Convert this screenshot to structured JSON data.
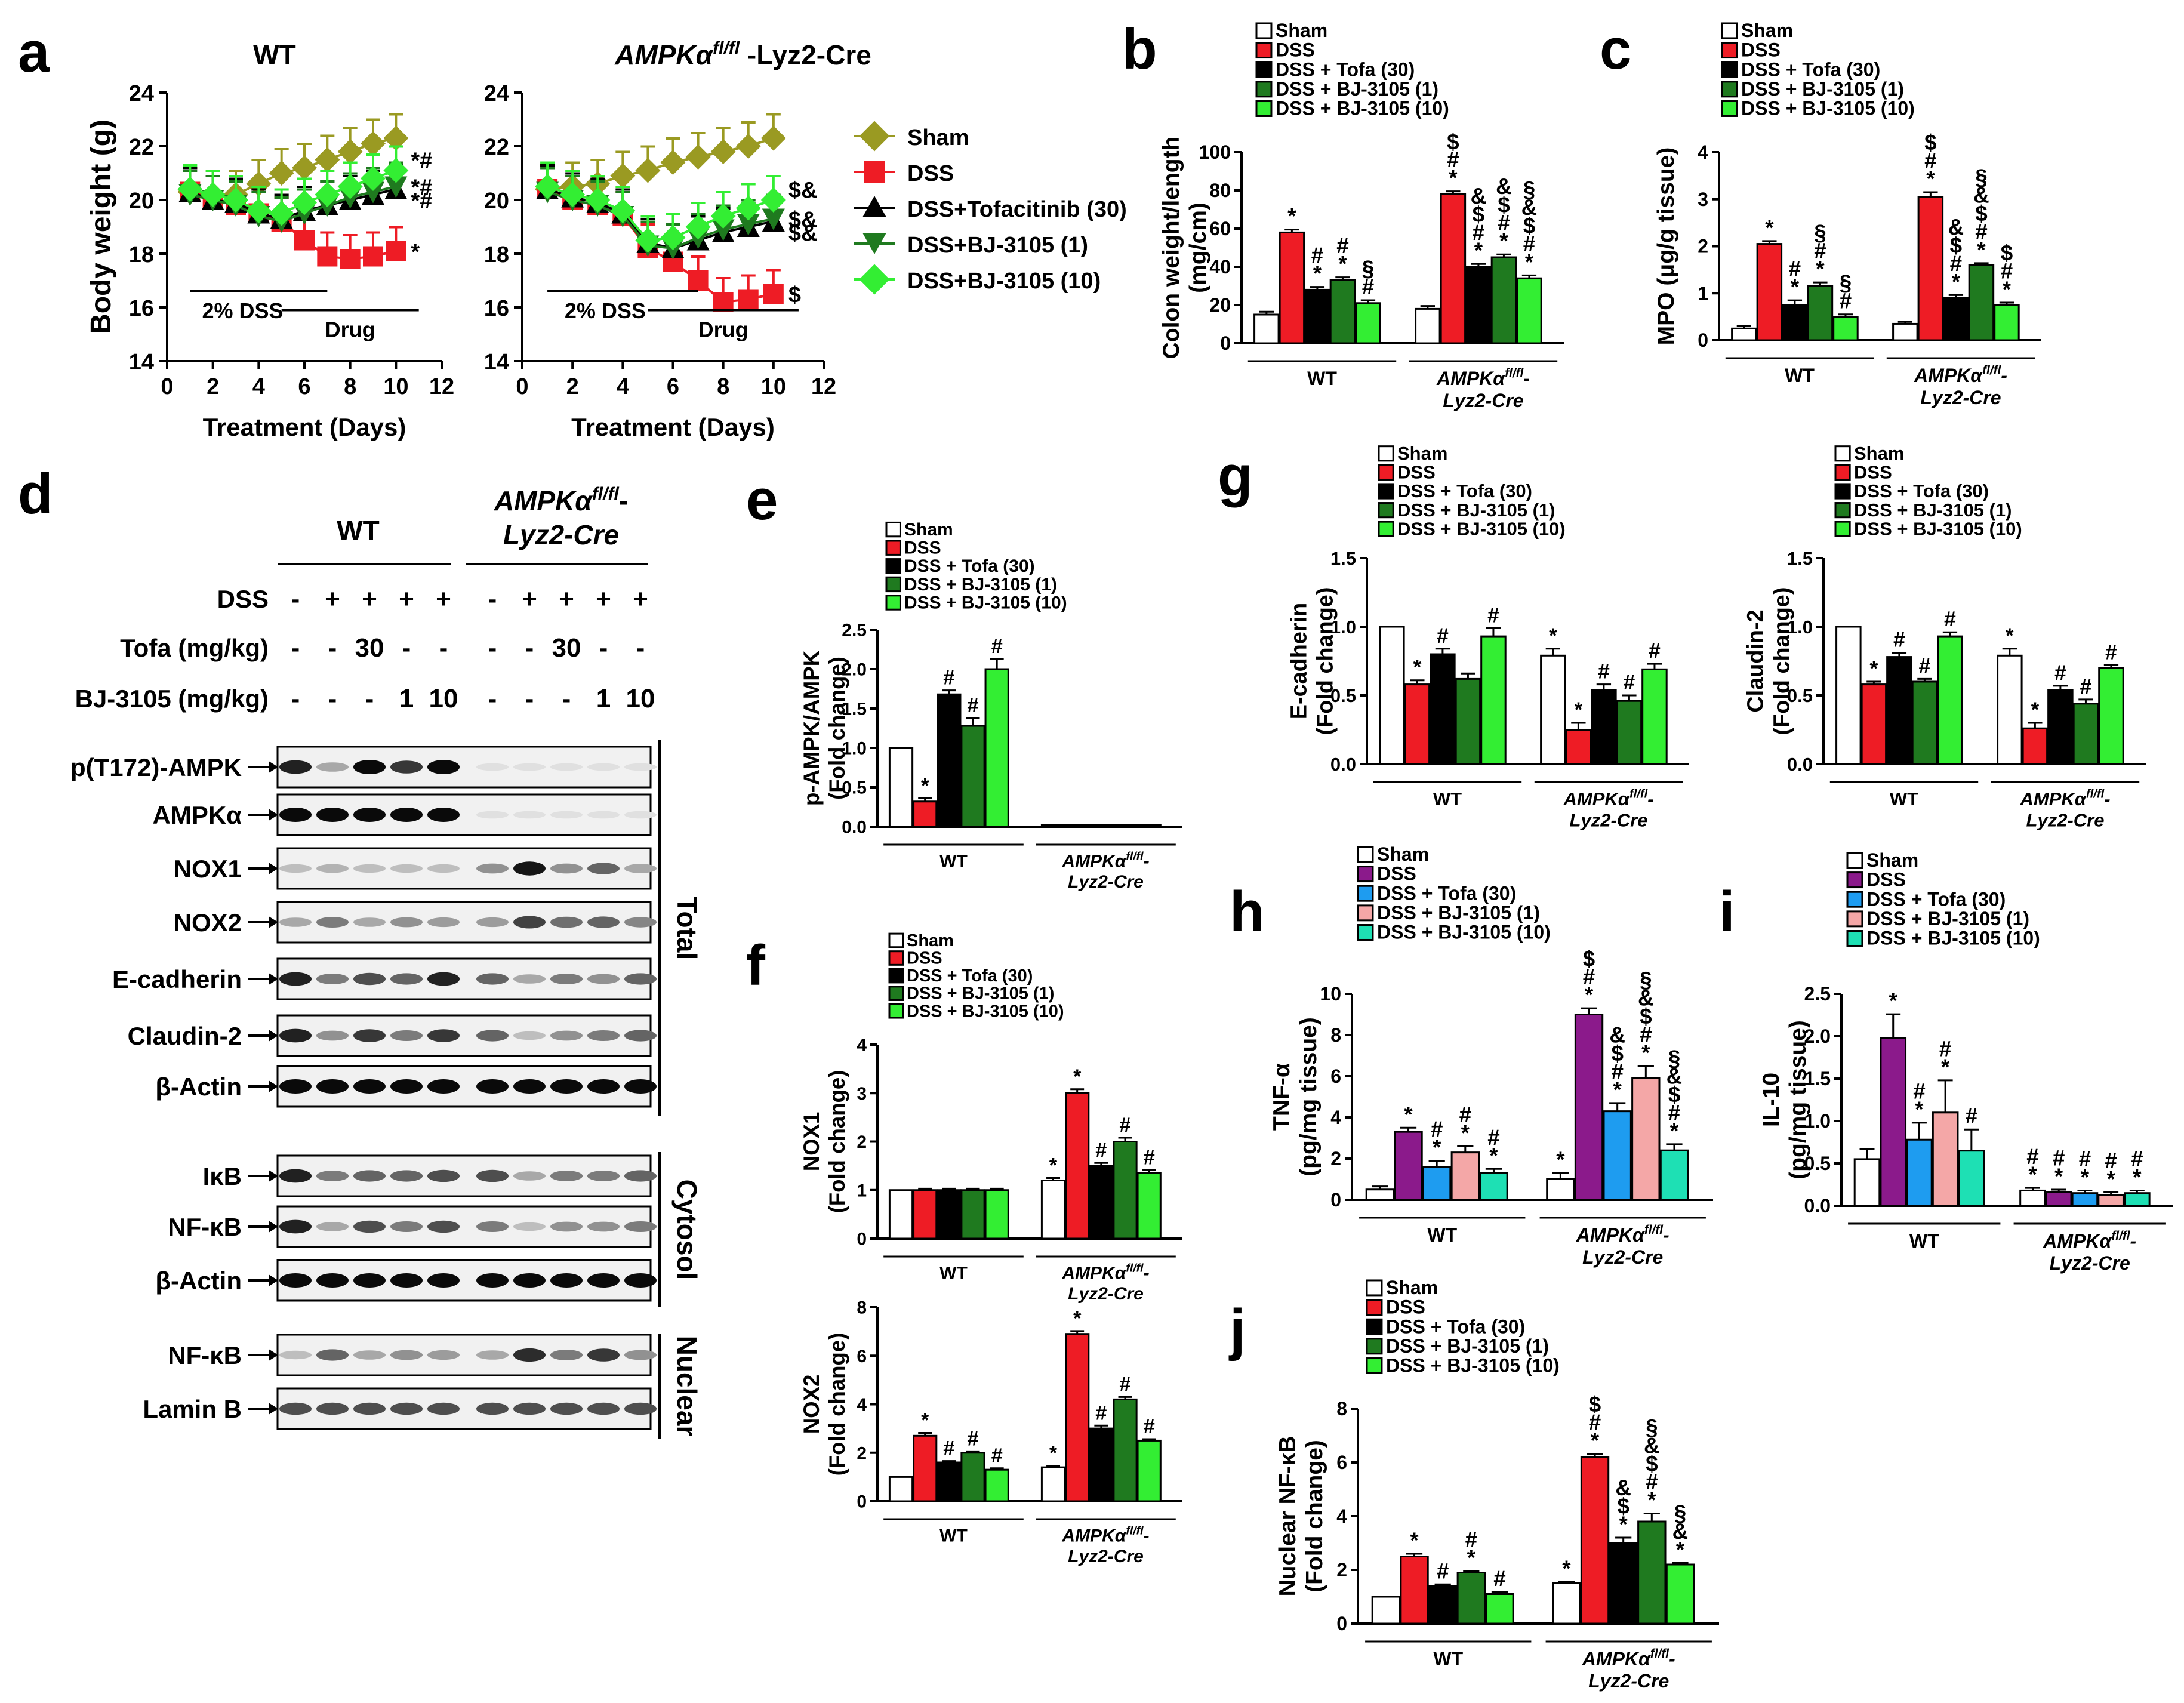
{
  "figure": {
    "panel_labels": [
      "a",
      "b",
      "c",
      "d",
      "e",
      "f",
      "g",
      "h",
      "i",
      "j"
    ]
  },
  "groups_a": {
    "wt": "WT",
    "ko": "AMPKα",
    "ko_sup": "fl/fl",
    "ko_tail": " -Lyz2-Cre"
  },
  "legend_a": [
    "Sham",
    "DSS",
    "DSS+Tofacitinib (30)",
    "DSS+BJ-3105 (1)",
    "DSS+BJ-3105 (10)"
  ],
  "legend_bar": [
    "Sham",
    "DSS",
    "DSS + Tofa (30)",
    "DSS + BJ-3105 (1)",
    "DSS + BJ-3105 (10)"
  ],
  "group_labels": {
    "wt": "WT",
    "ko_line1": "AMPKα",
    "ko_sup": "fl/fl",
    "ko_dash": "-",
    "ko_line2": "Lyz2-Cre"
  },
  "colors": {
    "set1": [
      "#ffffff",
      "#ee1c25",
      "#000000",
      "#1f7a1f",
      "#33ee33"
    ],
    "set2": [
      "#ffffff",
      "#8b1a8b",
      "#1e9cf0",
      "#f4a7a7",
      "#1ee0b4"
    ],
    "line": [
      "#9a9a22",
      "#ee1c25",
      "#000000",
      "#1f7a1f",
      "#33ee33"
    ]
  },
  "blot": {
    "header_wt": "WT",
    "header_ko": "AMPKα",
    "header_ko_sup": "fl/fl",
    "header_ko_tail": "-",
    "header_ko2": "Lyz2-Cre",
    "row_dss_label": "DSS",
    "row_dss": [
      "-",
      "+",
      "+",
      "+",
      "+",
      "-",
      "+",
      "+",
      "+",
      "+"
    ],
    "row_tofa_label": "Tofa (mg/kg)",
    "row_tofa": [
      "-",
      "-",
      "30",
      "-",
      "-",
      "-",
      "-",
      "30",
      "-",
      "-"
    ],
    "row_bj_label": "BJ-3105 (mg/kg)",
    "row_bj": [
      "-",
      "-",
      "-",
      "1",
      "10",
      "-",
      "-",
      "-",
      "1",
      "10"
    ],
    "bands": [
      "p(T172)-AMPK",
      "AMPKα",
      "NOX1",
      "NOX2",
      "E-cadherin",
      "Claudin-2",
      "β-Actin",
      "IκB",
      "NF-κB",
      "β-Actin",
      "NF-κB",
      "Lamin B"
    ],
    "section_total": "Total",
    "section_cytosol": "Cytosol",
    "section_nuclear": "Nuclear"
  },
  "chart_data": [
    {
      "id": "a_wt",
      "type": "line",
      "title": "WT",
      "xlabel": "Treatment (Days)",
      "ylabel": "Body weight (g)",
      "xlim": [
        0,
        12
      ],
      "ylim": [
        14,
        24
      ],
      "xticks": [
        "0",
        "2",
        "4",
        "6",
        "8",
        "10",
        "12"
      ],
      "yticks": [
        "14",
        "16",
        "18",
        "20",
        "22",
        "24"
      ],
      "x": [
        1,
        2,
        3,
        4,
        5,
        6,
        7,
        8,
        9,
        10
      ],
      "series": [
        {
          "name": "Sham",
          "values": [
            20.3,
            20.2,
            20.2,
            20.6,
            21.0,
            21.2,
            21.5,
            21.8,
            22.1,
            22.3
          ]
        },
        {
          "name": "DSS",
          "values": [
            20.3,
            20.0,
            19.8,
            19.5,
            19.2,
            18.5,
            17.9,
            17.8,
            17.9,
            18.1
          ]
        },
        {
          "name": "DSS+Tofacitinib (30)",
          "values": [
            20.3,
            20.0,
            19.9,
            19.5,
            19.3,
            19.6,
            19.8,
            20.0,
            20.2,
            20.4
          ]
        },
        {
          "name": "DSS+BJ-3105 (1)",
          "values": [
            20.2,
            20.0,
            19.8,
            19.4,
            19.2,
            19.5,
            19.8,
            20.1,
            20.3,
            20.5
          ]
        },
        {
          "name": "DSS+BJ-3105 (10)",
          "values": [
            20.4,
            20.2,
            20.0,
            19.6,
            19.5,
            19.9,
            20.2,
            20.5,
            20.8,
            21.1
          ]
        }
      ],
      "annotations": {
        "dss_bar": "2% DSS",
        "drug_bar": "Drug",
        "marks": [
          "*#",
          "*#",
          "*#",
          "*"
        ]
      }
    },
    {
      "id": "a_ko",
      "type": "line",
      "xlabel": "Treatment (Days)",
      "xlim": [
        0,
        12
      ],
      "ylim": [
        14,
        24
      ],
      "xticks": [
        "0",
        "2",
        "4",
        "6",
        "8",
        "10",
        "12"
      ],
      "yticks": [
        "14",
        "16",
        "18",
        "20",
        "22",
        "24"
      ],
      "x": [
        1,
        2,
        3,
        4,
        5,
        6,
        7,
        8,
        9,
        10
      ],
      "series": [
        {
          "name": "Sham",
          "values": [
            20.4,
            20.5,
            20.6,
            20.9,
            21.1,
            21.4,
            21.6,
            21.8,
            22.0,
            22.3
          ]
        },
        {
          "name": "DSS",
          "values": [
            20.4,
            20.0,
            19.8,
            19.4,
            18.2,
            17.7,
            17.0,
            16.2,
            16.3,
            16.5
          ]
        },
        {
          "name": "DSS+Tofacitinib (30)",
          "values": [
            20.4,
            20.1,
            19.9,
            19.5,
            18.4,
            18.2,
            18.5,
            18.8,
            19.0,
            19.2
          ]
        },
        {
          "name": "DSS+BJ-3105 (1)",
          "values": [
            20.3,
            20.0,
            19.8,
            19.4,
            18.3,
            18.2,
            18.6,
            18.9,
            19.1,
            19.3
          ]
        },
        {
          "name": "DSS+BJ-3105 (10)",
          "values": [
            20.5,
            20.2,
            20.0,
            19.6,
            18.5,
            18.6,
            19.0,
            19.4,
            19.7,
            20.0
          ]
        }
      ],
      "annotations": {
        "dss_bar": "2% DSS",
        "drug_bar": "Drug",
        "marks": [
          "$&",
          "$&",
          "$&",
          "$"
        ]
      }
    },
    {
      "id": "b",
      "type": "bar",
      "ylabel_line1": "Colon weight/length",
      "ylabel_line2": "(mg/cm)",
      "ylim": [
        0,
        100
      ],
      "yticks": [
        "0",
        "20",
        "40",
        "60",
        "80",
        "100"
      ],
      "palette": "set1",
      "groups": [
        {
          "name": "WT",
          "values": [
            15,
            58,
            28,
            33,
            21
          ],
          "errors": [
            1.5,
            1.5,
            1.5,
            1.5,
            1.5
          ],
          "marks": [
            "",
            "*",
            "#\n*",
            "#\n*",
            "§\n#"
          ]
        },
        {
          "name": "KO",
          "values": [
            18,
            78,
            40,
            45,
            34
          ],
          "errors": [
            1.5,
            1.5,
            1.5,
            1.5,
            1.5
          ],
          "marks": [
            "",
            "$\n#\n*",
            "&\n$\n#\n*",
            "&\n$\n#\n*",
            "§\n&\n$\n#\n*"
          ]
        }
      ]
    },
    {
      "id": "c",
      "type": "bar",
      "ylabel_line1": "MPO (μg/g tissue)",
      "ylim": [
        0,
        4
      ],
      "yticks": [
        "0",
        "1",
        "2",
        "3",
        "4"
      ],
      "palette": "set1",
      "groups": [
        {
          "name": "WT",
          "values": [
            0.25,
            2.05,
            0.75,
            1.15,
            0.5
          ],
          "errors": [
            0.06,
            0.06,
            0.1,
            0.08,
            0.05
          ],
          "marks": [
            "",
            "*",
            "#\n*",
            "§\n#\n*",
            "§\n#"
          ]
        },
        {
          "name": "KO",
          "values": [
            0.35,
            3.05,
            0.9,
            1.6,
            0.75
          ],
          "errors": [
            0.04,
            0.1,
            0.06,
            0.04,
            0.05
          ],
          "marks": [
            "",
            "$\n#\n*",
            "&\n$\n#\n*",
            "§\n&\n$\n#\n*",
            "$\n#\n*"
          ]
        }
      ]
    },
    {
      "id": "e",
      "type": "bar",
      "ylabel_line1": "p-AMPK/AMPK",
      "ylabel_line2": "(Fold change)",
      "ylim": [
        0,
        2.5
      ],
      "yticks": [
        "0.0",
        "0.5",
        "1.0",
        "1.5",
        "2.0",
        "2.5"
      ],
      "palette": "set1",
      "groups": [
        {
          "name": "WT",
          "values": [
            1.0,
            0.32,
            1.68,
            1.28,
            2.0
          ],
          "errors": [
            0,
            0.04,
            0.05,
            0.1,
            0.13
          ],
          "marks": [
            "",
            "*",
            "#",
            "#",
            "#"
          ]
        },
        {
          "name": "KO",
          "values": [
            0.02,
            0.02,
            0.02,
            0.02,
            0.02
          ],
          "errors": [
            0,
            0,
            0,
            0,
            0
          ],
          "marks": [
            "",
            "",
            "",
            "",
            ""
          ]
        }
      ]
    },
    {
      "id": "f1",
      "type": "bar",
      "ylabel_line1": "NOX1",
      "ylabel_line2": "(Fold change)",
      "ylim": [
        0,
        4
      ],
      "yticks": [
        "0",
        "1",
        "2",
        "3",
        "4"
      ],
      "palette": "set1",
      "groups": [
        {
          "name": "WT",
          "values": [
            1.0,
            1.0,
            1.0,
            1.0,
            1.0
          ],
          "errors": [
            0,
            0.03,
            0.03,
            0.03,
            0.03
          ],
          "marks": [
            "",
            "",
            "",
            "",
            ""
          ]
        },
        {
          "name": "KO",
          "values": [
            1.2,
            3.0,
            1.5,
            2.0,
            1.35
          ],
          "errors": [
            0.05,
            0.08,
            0.06,
            0.08,
            0.06
          ],
          "marks": [
            "*",
            "*",
            "#",
            "#",
            "#"
          ]
        }
      ]
    },
    {
      "id": "f2",
      "type": "bar",
      "ylabel_line1": "NOX2",
      "ylabel_line2": "(Fold change)",
      "ylim": [
        0,
        8
      ],
      "yticks": [
        "0",
        "2",
        "4",
        "6",
        "8"
      ],
      "palette": "set1",
      "groups": [
        {
          "name": "WT",
          "values": [
            1.0,
            2.7,
            1.6,
            2.0,
            1.3
          ],
          "errors": [
            0,
            0.12,
            0.06,
            0.06,
            0.06
          ],
          "marks": [
            "",
            "*",
            "#",
            "#",
            "#"
          ]
        },
        {
          "name": "KO",
          "values": [
            1.4,
            6.9,
            3.0,
            4.2,
            2.5
          ],
          "errors": [
            0.06,
            0.12,
            0.12,
            0.1,
            0.06
          ],
          "marks": [
            "*",
            "*",
            "#",
            "#",
            "#"
          ]
        }
      ]
    },
    {
      "id": "g1",
      "type": "bar",
      "ylabel_line1": "E-cadherin",
      "ylabel_line2": "(Fold change)",
      "ylim": [
        0,
        1.5
      ],
      "yticks": [
        "0.0",
        "0.5",
        "1.0",
        "1.5"
      ],
      "palette": "set1",
      "groups": [
        {
          "name": "WT",
          "values": [
            1.0,
            0.58,
            0.8,
            0.62,
            0.93
          ],
          "errors": [
            0,
            0.03,
            0.04,
            0.04,
            0.06
          ],
          "marks": [
            "",
            "*",
            "#",
            "",
            "#"
          ]
        },
        {
          "name": "KO",
          "values": [
            0.79,
            0.25,
            0.54,
            0.46,
            0.69
          ],
          "errors": [
            0.05,
            0.05,
            0.04,
            0.04,
            0.04
          ],
          "marks": [
            "*",
            "*",
            "#",
            "#",
            "#"
          ]
        }
      ]
    },
    {
      "id": "g2",
      "type": "bar",
      "ylabel_line1": "Claudin-2",
      "ylabel_line2": "(Fold change)",
      "ylim": [
        0,
        1.5
      ],
      "yticks": [
        "0.0",
        "0.5",
        "1.0",
        "1.5"
      ],
      "palette": "set1",
      "groups": [
        {
          "name": "WT",
          "values": [
            1.0,
            0.58,
            0.78,
            0.6,
            0.93
          ],
          "errors": [
            0,
            0.02,
            0.03,
            0.02,
            0.03
          ],
          "marks": [
            "",
            "*",
            "#",
            "#",
            "#"
          ]
        },
        {
          "name": "KO",
          "values": [
            0.79,
            0.26,
            0.54,
            0.44,
            0.7
          ],
          "errors": [
            0.05,
            0.04,
            0.03,
            0.03,
            0.02
          ],
          "marks": [
            "*",
            "*",
            "#",
            "#",
            "#"
          ]
        }
      ]
    },
    {
      "id": "h",
      "type": "bar",
      "ylabel_line1": "TNF-α",
      "ylabel_line2": "(pg/mg tissue)",
      "ylim": [
        0,
        10
      ],
      "yticks": [
        "0",
        "2",
        "4",
        "6",
        "8",
        "10"
      ],
      "palette": "set2",
      "groups": [
        {
          "name": "WT",
          "values": [
            0.5,
            3.3,
            1.6,
            2.3,
            1.3
          ],
          "errors": [
            0.15,
            0.2,
            0.3,
            0.3,
            0.2
          ],
          "marks": [
            "",
            "*",
            "#\n*",
            "#\n*",
            "#\n*"
          ]
        },
        {
          "name": "KO",
          "values": [
            1.0,
            9.0,
            4.3,
            5.9,
            2.4
          ],
          "errors": [
            0.3,
            0.3,
            0.4,
            0.6,
            0.3
          ],
          "marks": [
            "*",
            "$\n#\n*",
            "&\n$\n#\n*",
            "§\n&\n$\n#\n*",
            "§\n&\n$\n#\n*"
          ]
        }
      ]
    },
    {
      "id": "i",
      "type": "bar",
      "ylabel_line1": "IL-10",
      "ylabel_line2": "(pg/mg tissue)",
      "ylim": [
        0,
        2.5
      ],
      "yticks": [
        "0.0",
        "0.5",
        "1.0",
        "1.5",
        "2.0",
        "2.5"
      ],
      "palette": "set2",
      "groups": [
        {
          "name": "WT",
          "values": [
            0.55,
            1.98,
            0.78,
            1.1,
            0.65
          ],
          "errors": [
            0.12,
            0.28,
            0.2,
            0.38,
            0.25
          ],
          "marks": [
            "",
            "*",
            "#\n*",
            "#\n*",
            "#"
          ]
        },
        {
          "name": "KO",
          "values": [
            0.18,
            0.16,
            0.15,
            0.13,
            0.15
          ],
          "errors": [
            0.03,
            0.03,
            0.03,
            0.03,
            0.03
          ],
          "marks": [
            "#\n*",
            "#\n*",
            "#\n*",
            "#\n*",
            "#\n*"
          ]
        }
      ]
    },
    {
      "id": "j",
      "type": "bar",
      "ylabel_line1": "Nuclear NF-κB",
      "ylabel_line2": "(Fold change)",
      "ylim": [
        0,
        8
      ],
      "yticks": [
        "0",
        "2",
        "4",
        "6",
        "8"
      ],
      "palette": "set1",
      "groups": [
        {
          "name": "WT",
          "values": [
            1.0,
            2.5,
            1.4,
            1.9,
            1.1
          ],
          "errors": [
            0,
            0.1,
            0.06,
            0.06,
            0.08
          ],
          "marks": [
            "",
            "*",
            "#",
            "#\n*",
            "#"
          ]
        },
        {
          "name": "KO",
          "values": [
            1.5,
            6.2,
            3.0,
            3.8,
            2.2
          ],
          "errors": [
            0.06,
            0.12,
            0.2,
            0.3,
            0.06
          ],
          "marks": [
            "*",
            "$\n#\n*",
            "&\n$\n*",
            "§\n&\n$\n#\n*",
            "§\n&\n*"
          ]
        }
      ]
    }
  ]
}
